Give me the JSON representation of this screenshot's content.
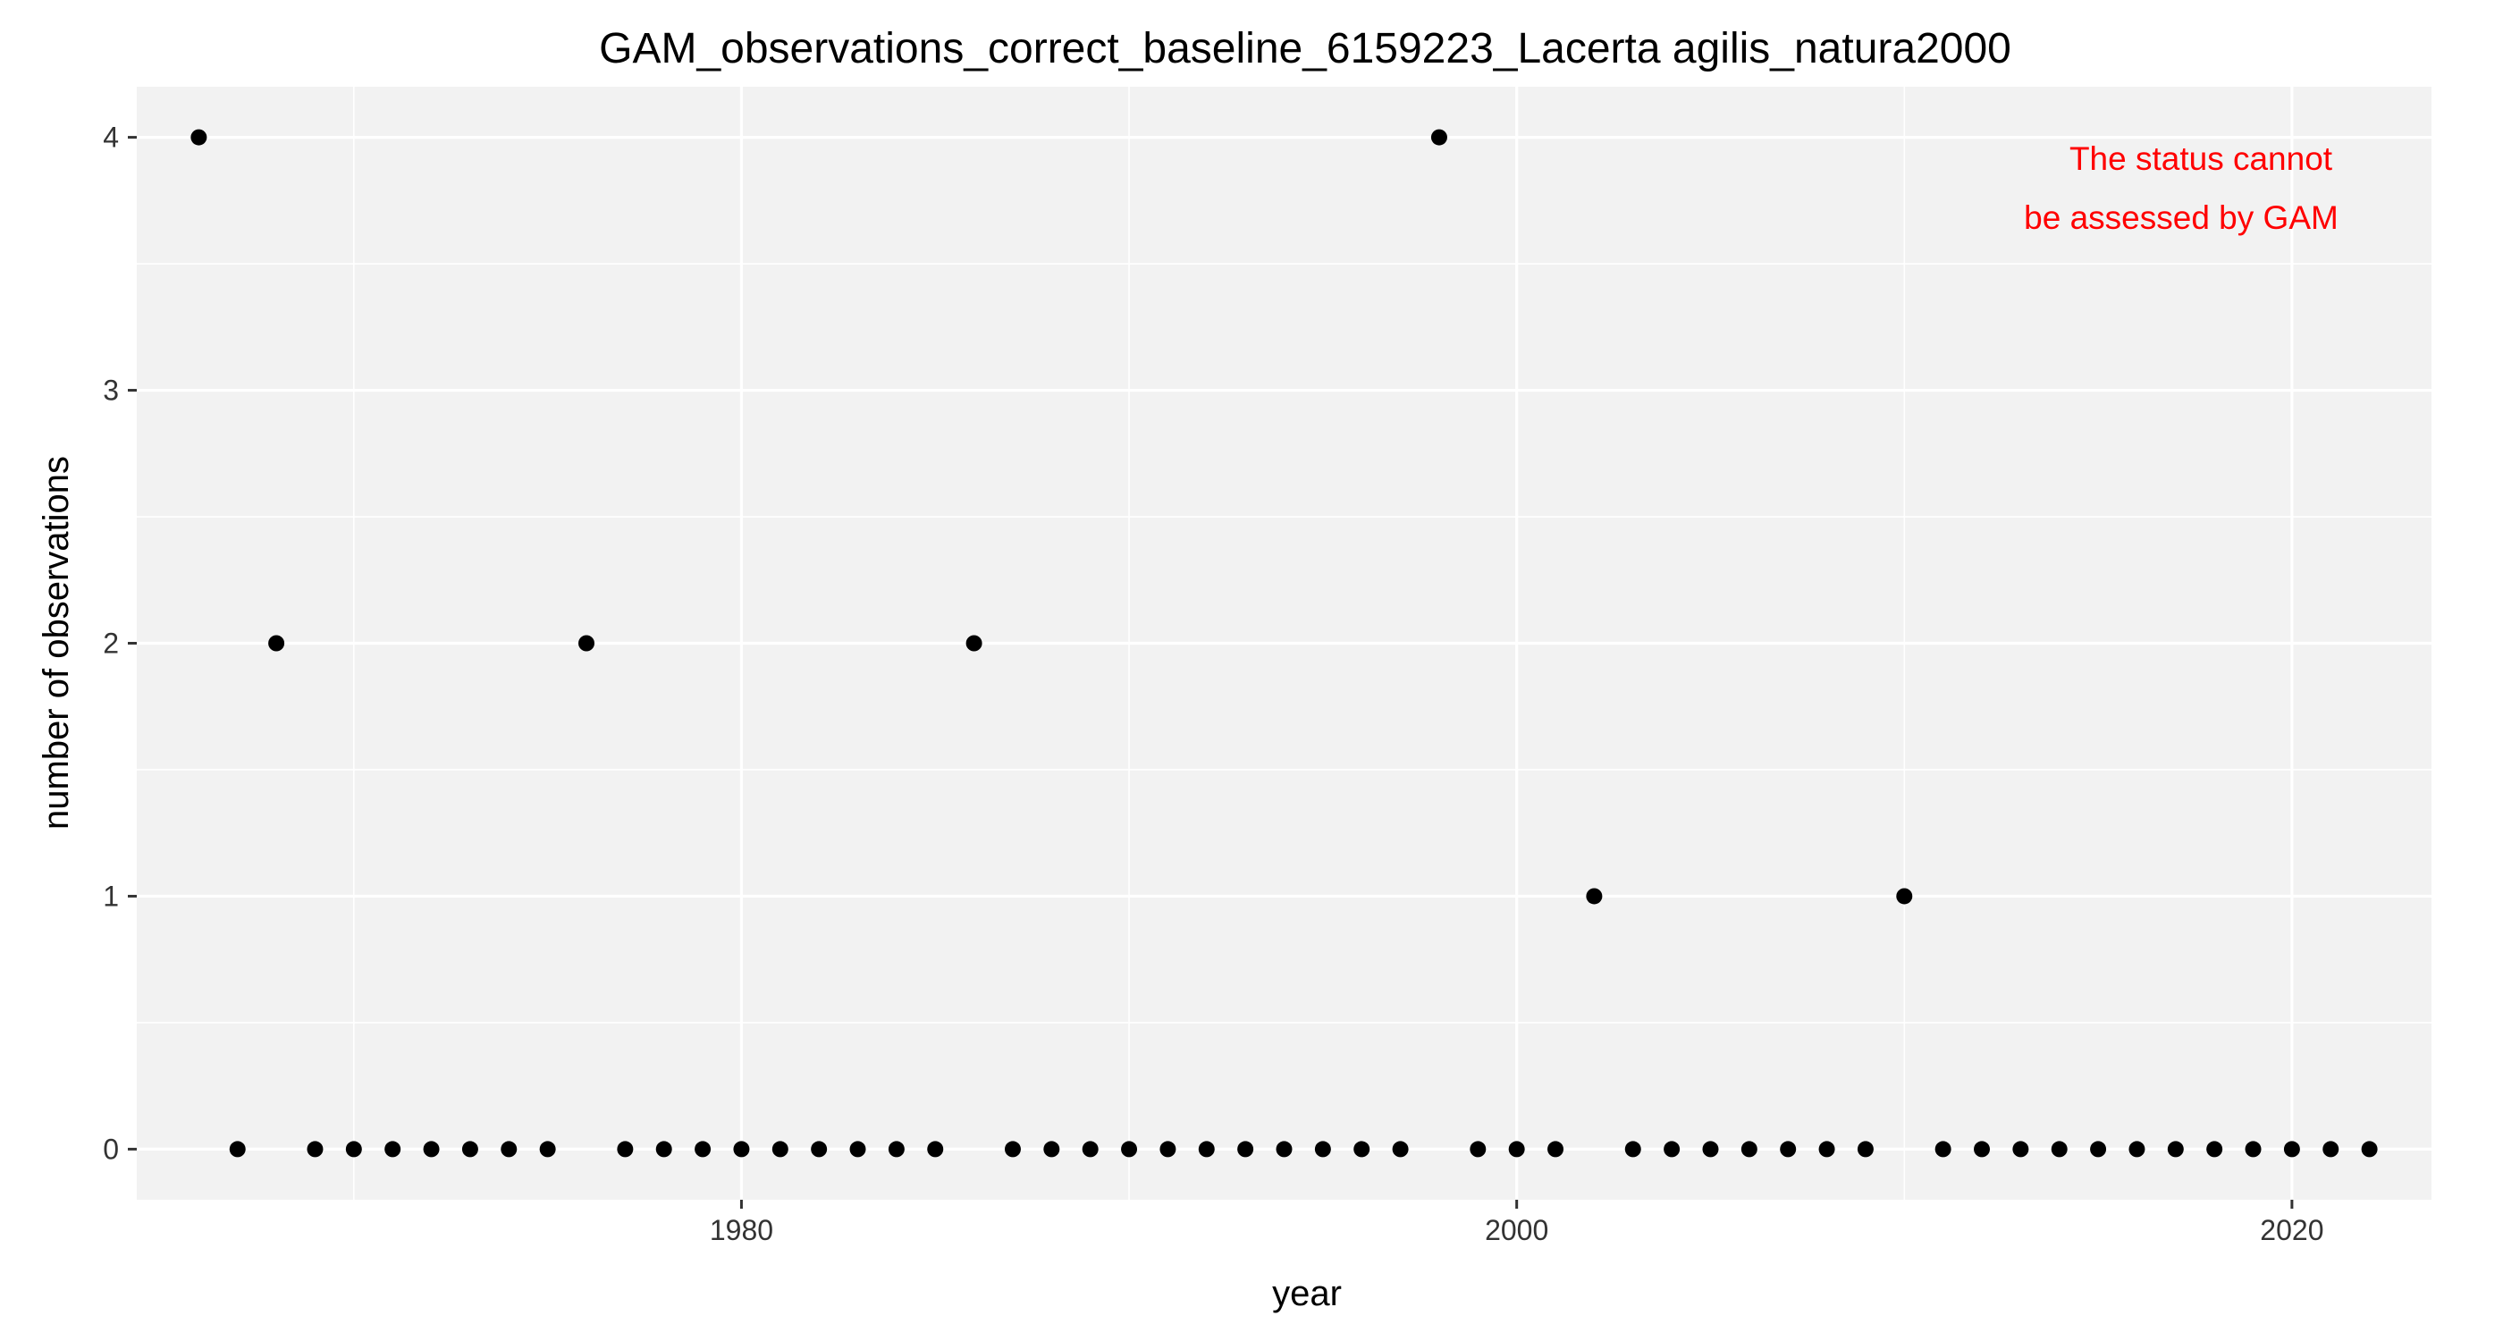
{
  "chart_data": {
    "type": "scatter",
    "title": "GAM_observations_correct_baseline_6159223_Lacerta agilis_natura2000",
    "xlabel": "year",
    "ylabel": "number of observations",
    "xlim": [
      1964.4,
      2023.6
    ],
    "ylim": [
      -0.2,
      4.2
    ],
    "x_ticks": [
      1980,
      2000,
      2020
    ],
    "x_minor_ticks": [
      1970,
      1990,
      2010
    ],
    "y_ticks": [
      0,
      1,
      2,
      3,
      4
    ],
    "y_minor_ticks": [
      0.5,
      1.5,
      2.5,
      3.5
    ],
    "grid": true,
    "panel_color": "#f2f2f2",
    "grid_color": "#ffffff",
    "point_color": "#000000",
    "annotation": {
      "lines": [
        "The status cannot",
        "be assessed by GAM"
      ],
      "color": "#ff0000",
      "position": "top-right"
    },
    "points": [
      {
        "x": 1966,
        "y": 4
      },
      {
        "x": 1967,
        "y": 0
      },
      {
        "x": 1968,
        "y": 2
      },
      {
        "x": 1969,
        "y": 0
      },
      {
        "x": 1970,
        "y": 0
      },
      {
        "x": 1971,
        "y": 0
      },
      {
        "x": 1972,
        "y": 0
      },
      {
        "x": 1973,
        "y": 0
      },
      {
        "x": 1974,
        "y": 0
      },
      {
        "x": 1975,
        "y": 0
      },
      {
        "x": 1976,
        "y": 2
      },
      {
        "x": 1977,
        "y": 0
      },
      {
        "x": 1978,
        "y": 0
      },
      {
        "x": 1979,
        "y": 0
      },
      {
        "x": 1980,
        "y": 0
      },
      {
        "x": 1981,
        "y": 0
      },
      {
        "x": 1982,
        "y": 0
      },
      {
        "x": 1983,
        "y": 0
      },
      {
        "x": 1984,
        "y": 0
      },
      {
        "x": 1985,
        "y": 0
      },
      {
        "x": 1986,
        "y": 2
      },
      {
        "x": 1987,
        "y": 0
      },
      {
        "x": 1988,
        "y": 0
      },
      {
        "x": 1989,
        "y": 0
      },
      {
        "x": 1990,
        "y": 0
      },
      {
        "x": 1991,
        "y": 0
      },
      {
        "x": 1992,
        "y": 0
      },
      {
        "x": 1993,
        "y": 0
      },
      {
        "x": 1994,
        "y": 0
      },
      {
        "x": 1995,
        "y": 0
      },
      {
        "x": 1996,
        "y": 0
      },
      {
        "x": 1997,
        "y": 0
      },
      {
        "x": 1998,
        "y": 4
      },
      {
        "x": 1999,
        "y": 0
      },
      {
        "x": 2000,
        "y": 0
      },
      {
        "x": 2001,
        "y": 0
      },
      {
        "x": 2002,
        "y": 1
      },
      {
        "x": 2003,
        "y": 0
      },
      {
        "x": 2004,
        "y": 0
      },
      {
        "x": 2005,
        "y": 0
      },
      {
        "x": 2006,
        "y": 0
      },
      {
        "x": 2007,
        "y": 0
      },
      {
        "x": 2008,
        "y": 0
      },
      {
        "x": 2009,
        "y": 0
      },
      {
        "x": 2010,
        "y": 1
      },
      {
        "x": 2011,
        "y": 0
      },
      {
        "x": 2012,
        "y": 0
      },
      {
        "x": 2013,
        "y": 0
      },
      {
        "x": 2014,
        "y": 0
      },
      {
        "x": 2015,
        "y": 0
      },
      {
        "x": 2016,
        "y": 0
      },
      {
        "x": 2017,
        "y": 0
      },
      {
        "x": 2018,
        "y": 0
      },
      {
        "x": 2019,
        "y": 0
      },
      {
        "x": 2020,
        "y": 0
      },
      {
        "x": 2021,
        "y": 0
      },
      {
        "x": 2022,
        "y": 0
      }
    ]
  }
}
